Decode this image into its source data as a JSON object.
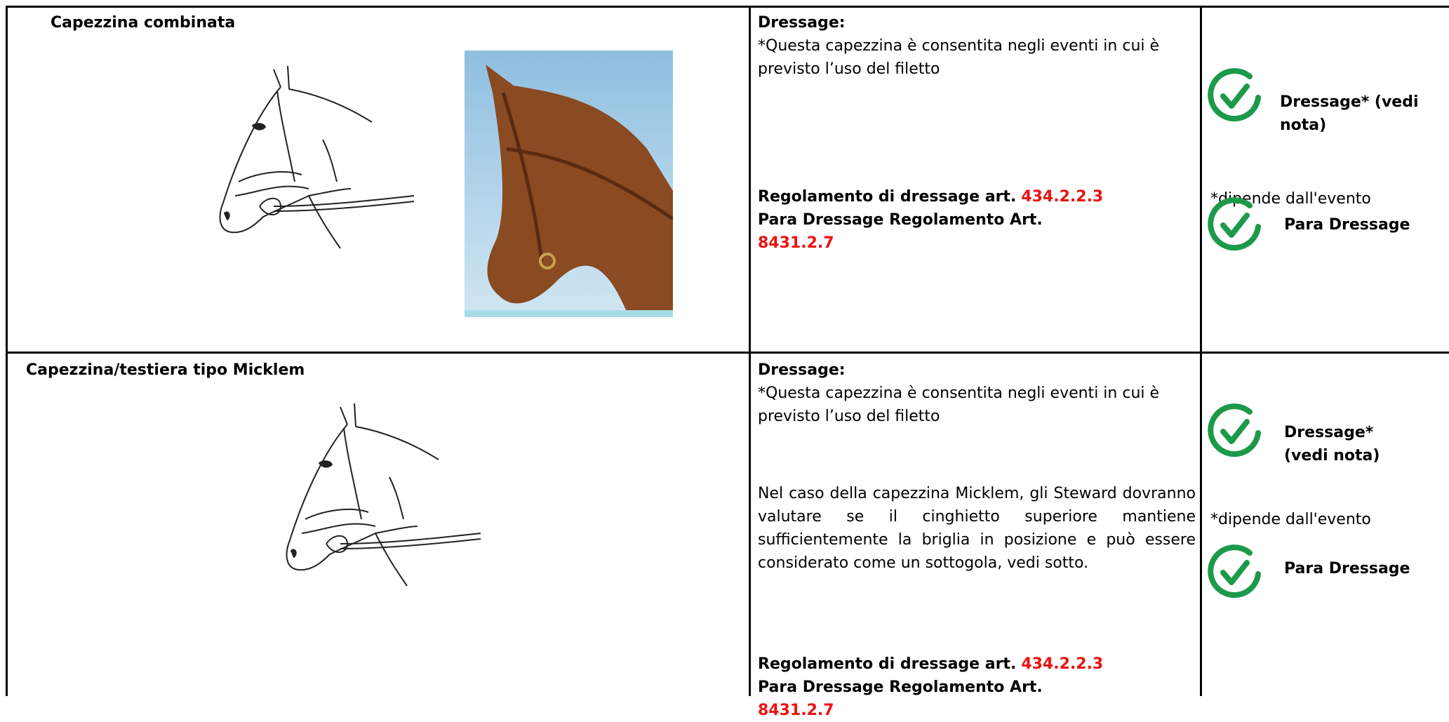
{
  "rows": [
    {
      "name": "Capezzina combinata",
      "discipline": "Dressage:",
      "note": "*Questa capezzina è consentita negli eventi in cui è previsto l’uso del filetto",
      "rule_1_text": "Regolamento di dressage art.",
      "rule_1_ref": "434.2.2.3",
      "rule_2_text": "Para Dressage Regolamento Art.",
      "rule_2_ref": "8431.2.7",
      "status_1": "Dressage* (vedi nota)",
      "status_note": "*dipende dall'evento",
      "status_2": "Para Dressage"
    },
    {
      "name": "Capezzina/testiera tipo Micklem",
      "discipline": "Dressage:",
      "note": "*Questa capezzina è consentita negli eventi in cui è previsto l’uso del filetto",
      "extra": "Nel caso della capezzina Micklem, gli Steward dovranno valutare se il cinghietto superiore mantiene sufficientemente la briglia in posizione e può essere considerato come un sottogola, vedi sotto.",
      "rule_1_text": "Regolamento di dressage art.",
      "rule_1_ref": "434.2.2.3",
      "rule_2_text": "Para Dressage Regolamento Art.",
      "rule_2_ref": "8431.2.7",
      "status_1": "Dressage* (vedi nota)",
      "status_note": "*dipende dall'evento",
      "status_2": "Para Dressage"
    }
  ]
}
